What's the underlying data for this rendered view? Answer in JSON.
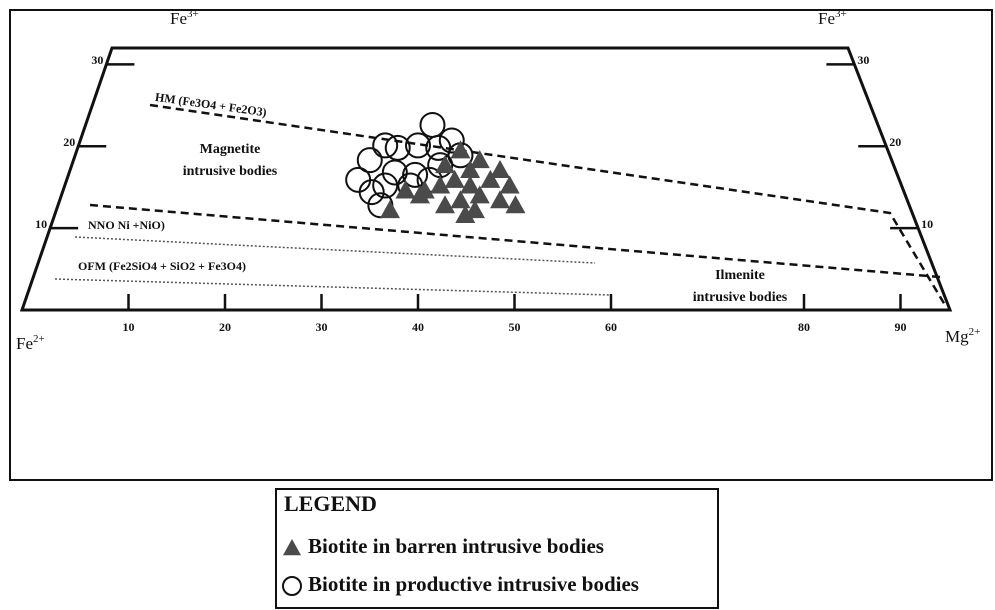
{
  "chart_data": {
    "type": "scatter",
    "corners": {
      "top_left": {
        "base": "Fe",
        "sup": "3+"
      },
      "top_right": {
        "base": "Fe",
        "sup": "3+"
      },
      "bottom_left": {
        "base": "Fe",
        "sup": "2+"
      },
      "bottom_right": {
        "base": "Mg",
        "sup": "2+"
      }
    },
    "annotations": {
      "hm": "HM (Fe3O4 + Fe2O3)",
      "nno": "NNO Ni +NiO)",
      "ofm": "OFM (Fe2SiO4 + SiO2 + Fe3O4)",
      "magnetite": [
        "Magnetite",
        "intrusive bodies"
      ],
      "ilmenite": [
        "Ilmenite",
        "intrusive bodies"
      ]
    },
    "xlim": [
      0,
      100
    ],
    "ylim": [
      0,
      32
    ],
    "xticks": [
      10,
      20,
      30,
      40,
      50,
      60,
      80,
      90
    ],
    "yticks": [
      10,
      20,
      30
    ],
    "legend_title": "LEGEND",
    "series": [
      {
        "name": "Biotite in barren intrusive bodies",
        "marker": "triangle",
        "color": "#4a4a4a",
        "x": [
          44.4,
          46.4,
          48.5,
          45.4,
          42.8,
          47.5,
          49.5,
          43.8,
          45.4,
          42.3,
          40.7,
          46.4,
          48.5,
          44.4,
          42.8,
          45.9,
          50.1,
          37.1,
          38.7,
          44.9,
          40.2
        ],
        "values": [
          19.5,
          18.3,
          17.1,
          17.1,
          17.7,
          15.9,
          15.2,
          15.9,
          15.2,
          15.2,
          14.6,
          14.0,
          13.4,
          13.4,
          12.8,
          12.2,
          12.8,
          12.2,
          14.6,
          11.6,
          14.0
        ]
      },
      {
        "name": "Biotite in productive intrusive bodies",
        "marker": "circle",
        "color": "#111111",
        "x": [
          41.5,
          43.5,
          36.6,
          37.9,
          40.0,
          42.1,
          44.4,
          35.0,
          37.6,
          39.7,
          42.3,
          33.8,
          36.6,
          39.2,
          41.2,
          35.2,
          36.1
        ],
        "values": [
          22.6,
          20.7,
          20.1,
          19.8,
          20.1,
          19.8,
          18.9,
          18.3,
          16.8,
          16.5,
          17.7,
          15.9,
          15.2,
          15.2,
          15.9,
          14.4,
          12.8
        ]
      }
    ]
  }
}
